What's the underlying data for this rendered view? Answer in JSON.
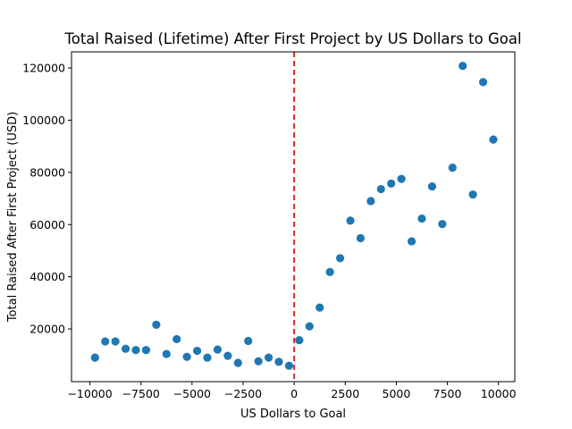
{
  "chart_data": {
    "type": "scatter",
    "title": "Total Raised (Lifetime) After First Project by US Dollars to Goal",
    "xlabel": "US Dollars to Goal",
    "ylabel": "Total Raised After First Project (USD)",
    "xlim": [
      -10900,
      10800
    ],
    "ylim": [
      -200,
      126200
    ],
    "xticks": [
      -10000,
      -7500,
      -5000,
      -2500,
      0,
      2500,
      5000,
      7500,
      10000
    ],
    "xtick_labels": [
      "−10000",
      "−7500",
      "−5000",
      "−2500",
      "0",
      "2500",
      "5000",
      "7500",
      "10000"
    ],
    "yticks": [
      20000,
      40000,
      60000,
      80000,
      100000,
      120000
    ],
    "ytick_labels": [
      "20000",
      "40000",
      "60000",
      "80000",
      "100000",
      "120000"
    ],
    "grid": false,
    "marker_color": "#1f77b4",
    "reference_line": {
      "x": 0,
      "style": "dashed",
      "color": "#d62728"
    },
    "points": [
      {
        "x": -9750,
        "y": 9000
      },
      {
        "x": -9250,
        "y": 15200
      },
      {
        "x": -8750,
        "y": 15200
      },
      {
        "x": -8250,
        "y": 12400
      },
      {
        "x": -7750,
        "y": 11900
      },
      {
        "x": -7250,
        "y": 11900
      },
      {
        "x": -6750,
        "y": 21600
      },
      {
        "x": -6250,
        "y": 10400
      },
      {
        "x": -5750,
        "y": 16100
      },
      {
        "x": -5250,
        "y": 9300
      },
      {
        "x": -4750,
        "y": 11600
      },
      {
        "x": -4250,
        "y": 9000
      },
      {
        "x": -3750,
        "y": 12100
      },
      {
        "x": -3250,
        "y": 9700
      },
      {
        "x": -2750,
        "y": 7000
      },
      {
        "x": -2250,
        "y": 15400
      },
      {
        "x": -1750,
        "y": 7600
      },
      {
        "x": -1250,
        "y": 9000
      },
      {
        "x": -750,
        "y": 7400
      },
      {
        "x": -250,
        "y": 5900
      },
      {
        "x": 250,
        "y": 15700
      },
      {
        "x": 750,
        "y": 21000
      },
      {
        "x": 1250,
        "y": 28200
      },
      {
        "x": 1750,
        "y": 41800
      },
      {
        "x": 2250,
        "y": 47100
      },
      {
        "x": 2750,
        "y": 61500
      },
      {
        "x": 3250,
        "y": 54800
      },
      {
        "x": 3750,
        "y": 69000
      },
      {
        "x": 4250,
        "y": 73600
      },
      {
        "x": 4750,
        "y": 75700
      },
      {
        "x": 5250,
        "y": 77500
      },
      {
        "x": 5750,
        "y": 53600
      },
      {
        "x": 6250,
        "y": 62300
      },
      {
        "x": 6750,
        "y": 74600
      },
      {
        "x": 7250,
        "y": 60200
      },
      {
        "x": 7750,
        "y": 81800
      },
      {
        "x": 8250,
        "y": 120800
      },
      {
        "x": 8750,
        "y": 71500
      },
      {
        "x": 9250,
        "y": 114600
      },
      {
        "x": 9750,
        "y": 92600
      }
    ]
  }
}
